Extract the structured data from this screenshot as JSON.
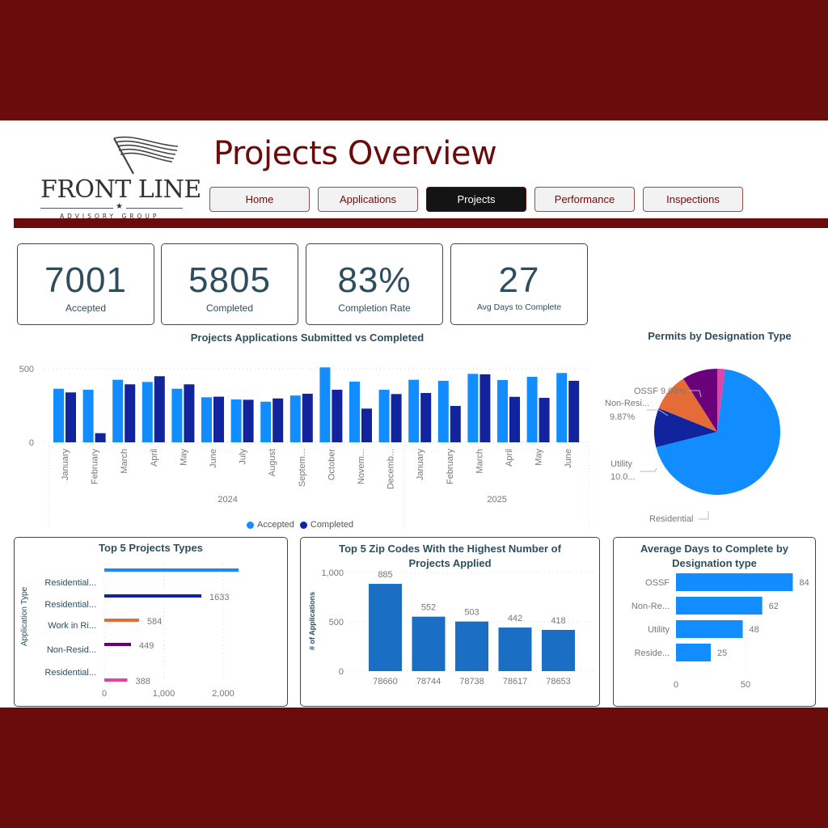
{
  "colors": {
    "maroon": "#6B0C0C",
    "accepted": "#118DFF",
    "completed": "#12239E",
    "orange": "#E66C37",
    "purple": "#6B007B",
    "pink": "#E044A7",
    "zip_bar": "#1A6FC4",
    "title_text": "#2D4E5E"
  },
  "logo": {
    "name": "FRONT LINE",
    "subtitle": "ADVISORY GROUP"
  },
  "header": {
    "title": "Projects Overview"
  },
  "nav": [
    {
      "label": "Home",
      "active": false
    },
    {
      "label": "Applications",
      "active": false
    },
    {
      "label": "Projects",
      "active": true
    },
    {
      "label": "Performance",
      "active": false
    },
    {
      "label": "Inspections",
      "active": false
    }
  ],
  "kpis": [
    {
      "value": "7001",
      "label": "Accepted"
    },
    {
      "value": "5805",
      "label": "Completed"
    },
    {
      "value": "83%",
      "label": "Completion Rate"
    },
    {
      "value": "27",
      "label": "Avg Days to Complete"
    }
  ],
  "chart_data": [
    {
      "type": "bar",
      "title": "Projects Applications Submitted vs Completed",
      "xlabel": "",
      "ylabel": "",
      "ylim": [
        0,
        500
      ],
      "yticks": [
        "0",
        "500"
      ],
      "x_groups": [
        {
          "label": "2024",
          "months": [
            "January",
            "February",
            "March",
            "April",
            "May",
            "June",
            "July",
            "August",
            "Septem...",
            "October",
            "Novem...",
            "Decemb..."
          ]
        },
        {
          "label": "2025",
          "months": [
            "January",
            "February",
            "March",
            "April",
            "May",
            "June"
          ]
        }
      ],
      "categories": [
        "Jan 2024",
        "Feb 2024",
        "Mar 2024",
        "Apr 2024",
        "May 2024",
        "Jun 2024",
        "Jul 2024",
        "Aug 2024",
        "Sep 2024",
        "Oct 2024",
        "Nov 2024",
        "Dec 2024",
        "Jan 2025",
        "Feb 2025",
        "Mar 2025",
        "Apr 2025",
        "May 2025",
        "Jun 2025"
      ],
      "series": [
        {
          "name": "Accepted",
          "color": "#118DFF",
          "values": [
            364,
            357,
            425,
            410,
            364,
            306,
            291,
            276,
            318,
            509,
            412,
            357,
            425,
            418,
            465,
            423,
            445,
            471
          ]
        },
        {
          "name": "Completed",
          "color": "#12239E",
          "values": [
            339,
            62,
            394,
            449,
            394,
            310,
            289,
            298,
            330,
            357,
            229,
            328,
            335,
            247,
            462,
            309,
            302,
            418
          ]
        }
      ],
      "legend": [
        "Accepted",
        "Completed"
      ],
      "legend_position": "bottom",
      "grid": true
    },
    {
      "type": "pie",
      "title": "Permits by Designation Type",
      "slices": [
        {
          "label": "Residential",
          "display": "Residential 69.07%",
          "value": 69.07,
          "color": "#118DFF"
        },
        {
          "label": "Utility",
          "display": "Utility 10.0...",
          "value": 10.03,
          "color": "#12239E"
        },
        {
          "label": "Non-Resi...",
          "display": "Non-Resi... 9.87%",
          "value": 9.87,
          "color": "#E66C37"
        },
        {
          "label": "OSSF",
          "display": "OSSF 9.03%",
          "value": 9.03,
          "color": "#6B007B"
        },
        {
          "label": "",
          "display": "",
          "value": 2.0,
          "color": "#E044A7"
        }
      ]
    },
    {
      "type": "bar",
      "orientation": "horizontal",
      "title": "Top 5 Projects Types",
      "ylabel": "Application Type",
      "xlim": [
        0,
        2300
      ],
      "xticks": [
        "0",
        "1,000",
        "2,000"
      ],
      "categories": [
        "Residential...",
        "Residential...",
        "Work in Ri...",
        "Non-Resid...",
        "Residential..."
      ],
      "values": [
        2260,
        1633,
        584,
        449,
        388
      ],
      "value_labels": [
        "",
        "1633",
        "584",
        "449",
        "388"
      ],
      "colors": [
        "#118DFF",
        "#12239E",
        "#E66C37",
        "#6B007B",
        "#E044A7"
      ]
    },
    {
      "type": "bar",
      "title": "Top 5 Zip Codes With the Highest Number of Projects Applied",
      "ylabel": "# of Applications",
      "ylim": [
        0,
        1000
      ],
      "yticks": [
        "0",
        "500",
        "1,000"
      ],
      "categories": [
        "78660",
        "78744",
        "78738",
        "78617",
        "78653"
      ],
      "values": [
        885,
        552,
        503,
        442,
        418
      ],
      "value_labels": [
        "885",
        "552",
        "503",
        "442",
        "418"
      ]
    },
    {
      "type": "bar",
      "orientation": "horizontal",
      "title": "Average Days to Complete by Designation type",
      "xlim": [
        0,
        85
      ],
      "xticks": [
        "0",
        "50"
      ],
      "categories": [
        "OSSF",
        "Non-Re...",
        "Utility",
        "Reside..."
      ],
      "values": [
        84,
        62,
        48,
        25
      ],
      "value_labels": [
        "84",
        "62",
        "48",
        "25"
      ]
    }
  ]
}
